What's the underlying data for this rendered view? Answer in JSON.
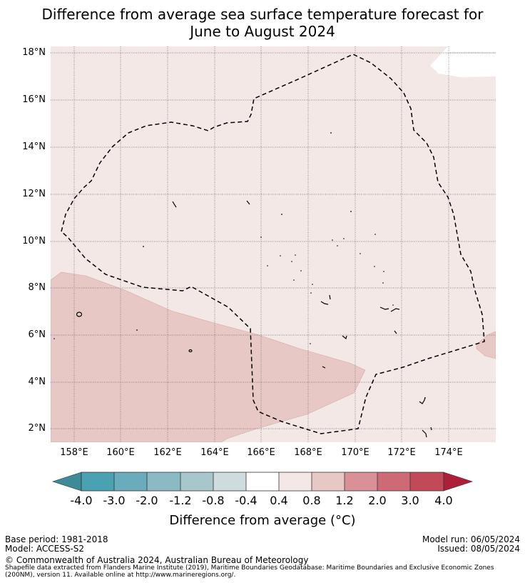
{
  "title_line1": "Difference from average sea surface temperature forecast for",
  "title_line2": "June to August 2024",
  "lat_labels": [
    "18°N",
    "16°N",
    "14°N",
    "12°N",
    "10°N",
    "8°N",
    "6°N",
    "4°N",
    "2°N"
  ],
  "lon_labels": [
    "158°E",
    "160°E",
    "162°E",
    "164°E",
    "166°E",
    "168°E",
    "170°E",
    "172°E",
    "174°E"
  ],
  "colorbar": {
    "title": "Difference from average (°C)",
    "ticks": [
      "-4.0",
      "-3.0",
      "-2.0",
      "-1.2",
      "-0.8",
      "-0.4",
      "0.4",
      "0.8",
      "1.2",
      "2.0",
      "3.0",
      "4.0"
    ],
    "colors": [
      "#3d8a99",
      "#49a1b2",
      "#6aacbb",
      "#8cbac4",
      "#a7c7cc",
      "#cfdcdf",
      "#ffffff",
      "#f4e8e6",
      "#e8c8c4",
      "#d99096",
      "#cd6a76",
      "#c14958",
      "#ad1f39"
    ]
  },
  "map_colors": {
    "band_0_4_0_8": "#f4e8e6",
    "band_0_8_1_2": "#e8c8c4"
  },
  "footer": {
    "base_period": "Base period: 1981-2018",
    "model": "Model: ACCESS-S2",
    "model_run": "Model run: 06/05/2024",
    "issued": "Issued: 08/05/2024",
    "copyright": "© Commonwealth of Australia 2024, Australian Bureau of Meteorology",
    "source_line1": "Shapefile data extracted from Flanders Marine Institute (2019), Maritime Boundaries Geodatabase: Maritime Boundaries and Exclusive Economic Zones",
    "source_line2": "(200NM), version 11. Available online at http://www.marineregions.org/."
  }
}
